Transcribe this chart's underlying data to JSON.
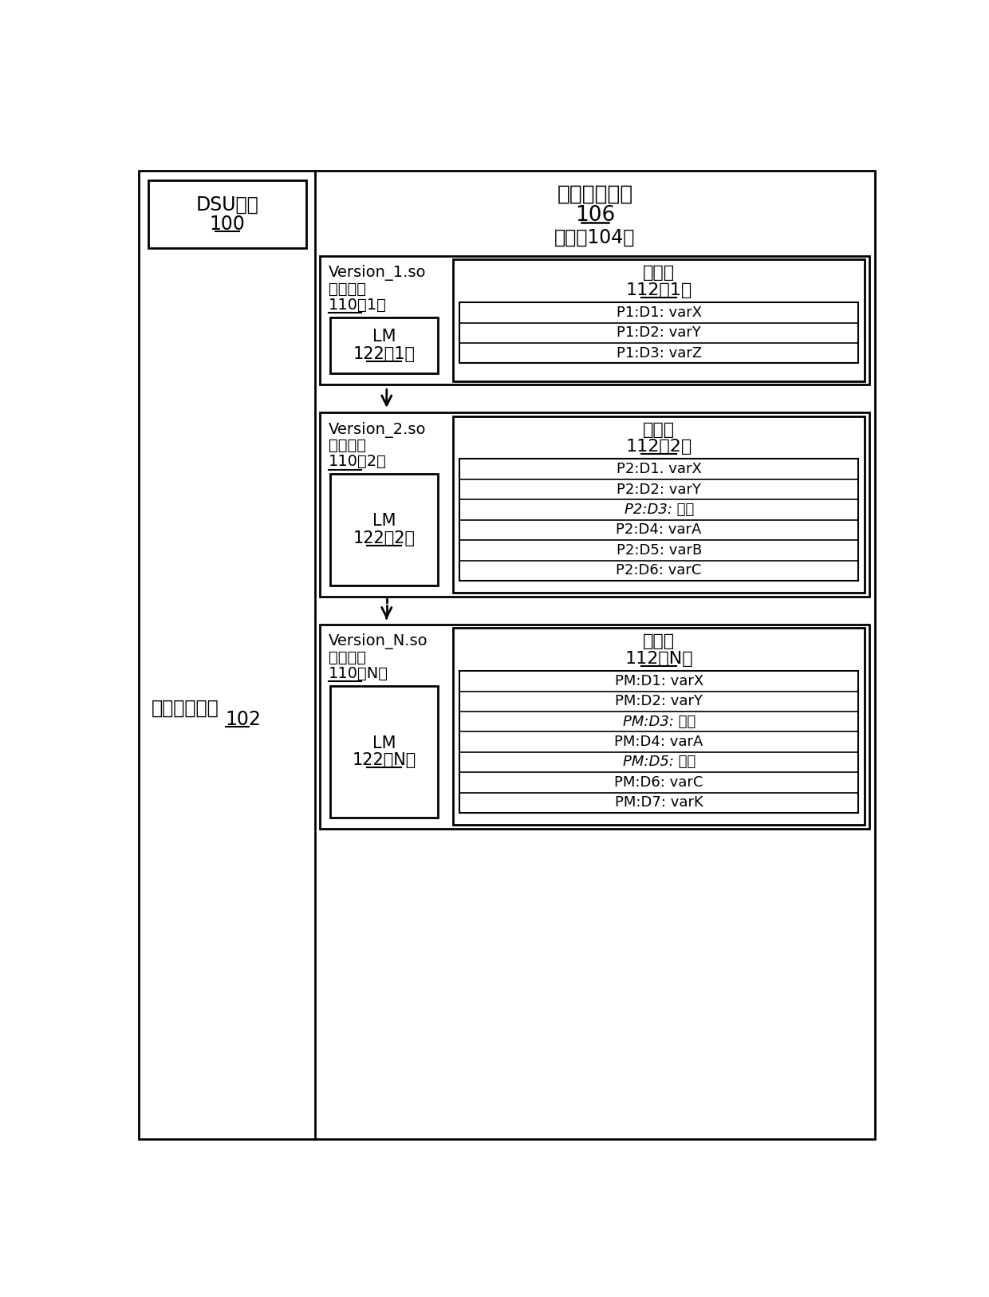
{
  "bg_color": "#ffffff",
  "title_process": "进程地址空间",
  "title_106": "106",
  "title_104": "（程序104）",
  "label_dsu": "DSU工具",
  "label_dsu_num": "100",
  "label_logic": "逻辑地址空间",
  "label_logic_num": "102",
  "versions": [
    {
      "name_line1": "Version_1.so",
      "name_line2": "地址空间",
      "name_line3": "110（1）",
      "lm_label": "LM",
      "lm_num": "122（1）",
      "data_title": "数据段",
      "data_num": "112（1）",
      "rows": [
        {
          "text": "P1:D1: varX",
          "italic": false
        },
        {
          "text": "P1:D2: varY",
          "italic": false
        },
        {
          "text": "P1:D3: varZ",
          "italic": false
        }
      ],
      "arrow_after": "solid"
    },
    {
      "name_line1": "Version_2.so",
      "name_line2": "地址空间",
      "name_line3": "110（2）",
      "lm_label": "LM",
      "lm_num": "122（2）",
      "data_title": "数据段",
      "data_num": "112（2）",
      "rows": [
        {
          "text": "P2:D1. varX",
          "italic": false
        },
        {
          "text": "P2:D2: varY",
          "italic": false
        },
        {
          "text": "P2:D3: 填充",
          "italic": true
        },
        {
          "text": "P2:D4: varA",
          "italic": false
        },
        {
          "text": "P2:D5: varB",
          "italic": false
        },
        {
          "text": "P2:D6: varC",
          "italic": false
        }
      ],
      "arrow_after": "dashed"
    },
    {
      "name_line1": "Version_N.so",
      "name_line2": "地址空间",
      "name_line3": "110（N）",
      "lm_label": "LM",
      "lm_num": "122（N）",
      "data_title": "数据段",
      "data_num": "112（N）",
      "rows": [
        {
          "text": "PM:D1: varX",
          "italic": false
        },
        {
          "text": "PM:D2: varY",
          "italic": false
        },
        {
          "text": "PM:D3: 填充",
          "italic": true
        },
        {
          "text": "PM:D4: varA",
          "italic": false
        },
        {
          "text": "PM:D5: 填充",
          "italic": true
        },
        {
          "text": "PM:D6: varC",
          "italic": false
        },
        {
          "text": "PM:D7: varK",
          "italic": false
        }
      ],
      "arrow_after": null
    }
  ]
}
